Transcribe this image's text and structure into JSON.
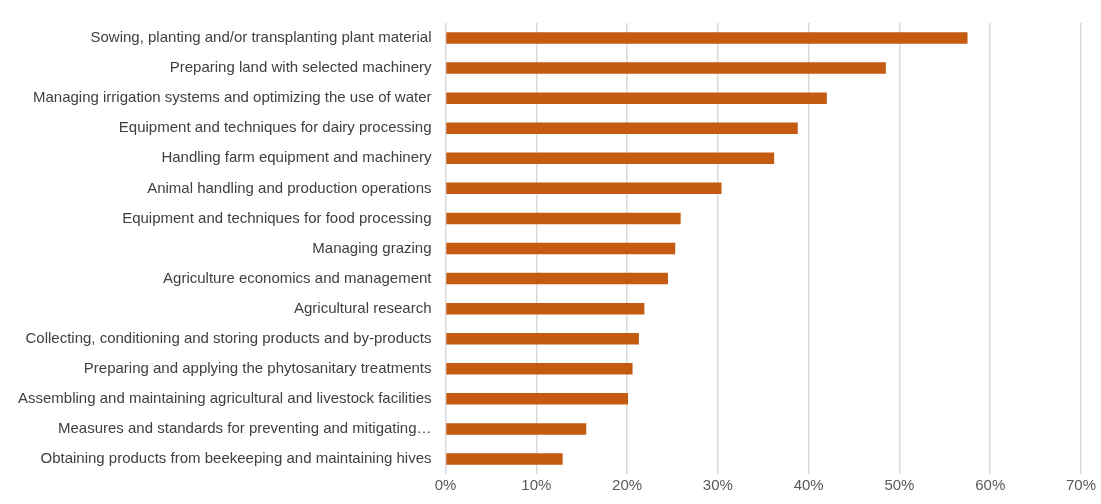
{
  "chart_data": {
    "type": "bar",
    "orientation": "horizontal",
    "categories": [
      "Sowing, planting and/or transplanting plant material",
      "Preparing land with selected machinery",
      "Managing irrigation systems and optimizing the use of water",
      "Equipment and techniques for dairy processing",
      "Handling farm equipment and machinery",
      "Animal handling and production operations",
      "Equipment and techniques for food processing",
      "Managing grazing",
      "Agriculture economics and management",
      "Agricultural research",
      "Collecting, conditioning and storing products and by-products",
      "Preparing and applying the phytosanitary treatments",
      "Assembling and maintaining agricultural and livestock facilities",
      "Measures and standards for preventing and mitigating…",
      "Obtaining products from beekeeping and maintaining hives"
    ],
    "values": [
      57.5,
      48.5,
      42.0,
      38.8,
      36.2,
      30.4,
      25.9,
      25.3,
      24.5,
      21.9,
      21.3,
      20.6,
      20.1,
      15.5,
      12.9
    ],
    "color": "#c55a11",
    "xlim": [
      0,
      70
    ],
    "xticks": [
      {
        "value": 0,
        "label": "0%"
      },
      {
        "value": 10,
        "label": "10%"
      },
      {
        "value": 20,
        "label": "20%"
      },
      {
        "value": 30,
        "label": "30%"
      },
      {
        "value": 40,
        "label": "40%"
      },
      {
        "value": 50,
        "label": "50%"
      },
      {
        "value": 60,
        "label": "60%"
      },
      {
        "value": 70,
        "label": "70%"
      }
    ],
    "grid": "x",
    "legend": false
  }
}
